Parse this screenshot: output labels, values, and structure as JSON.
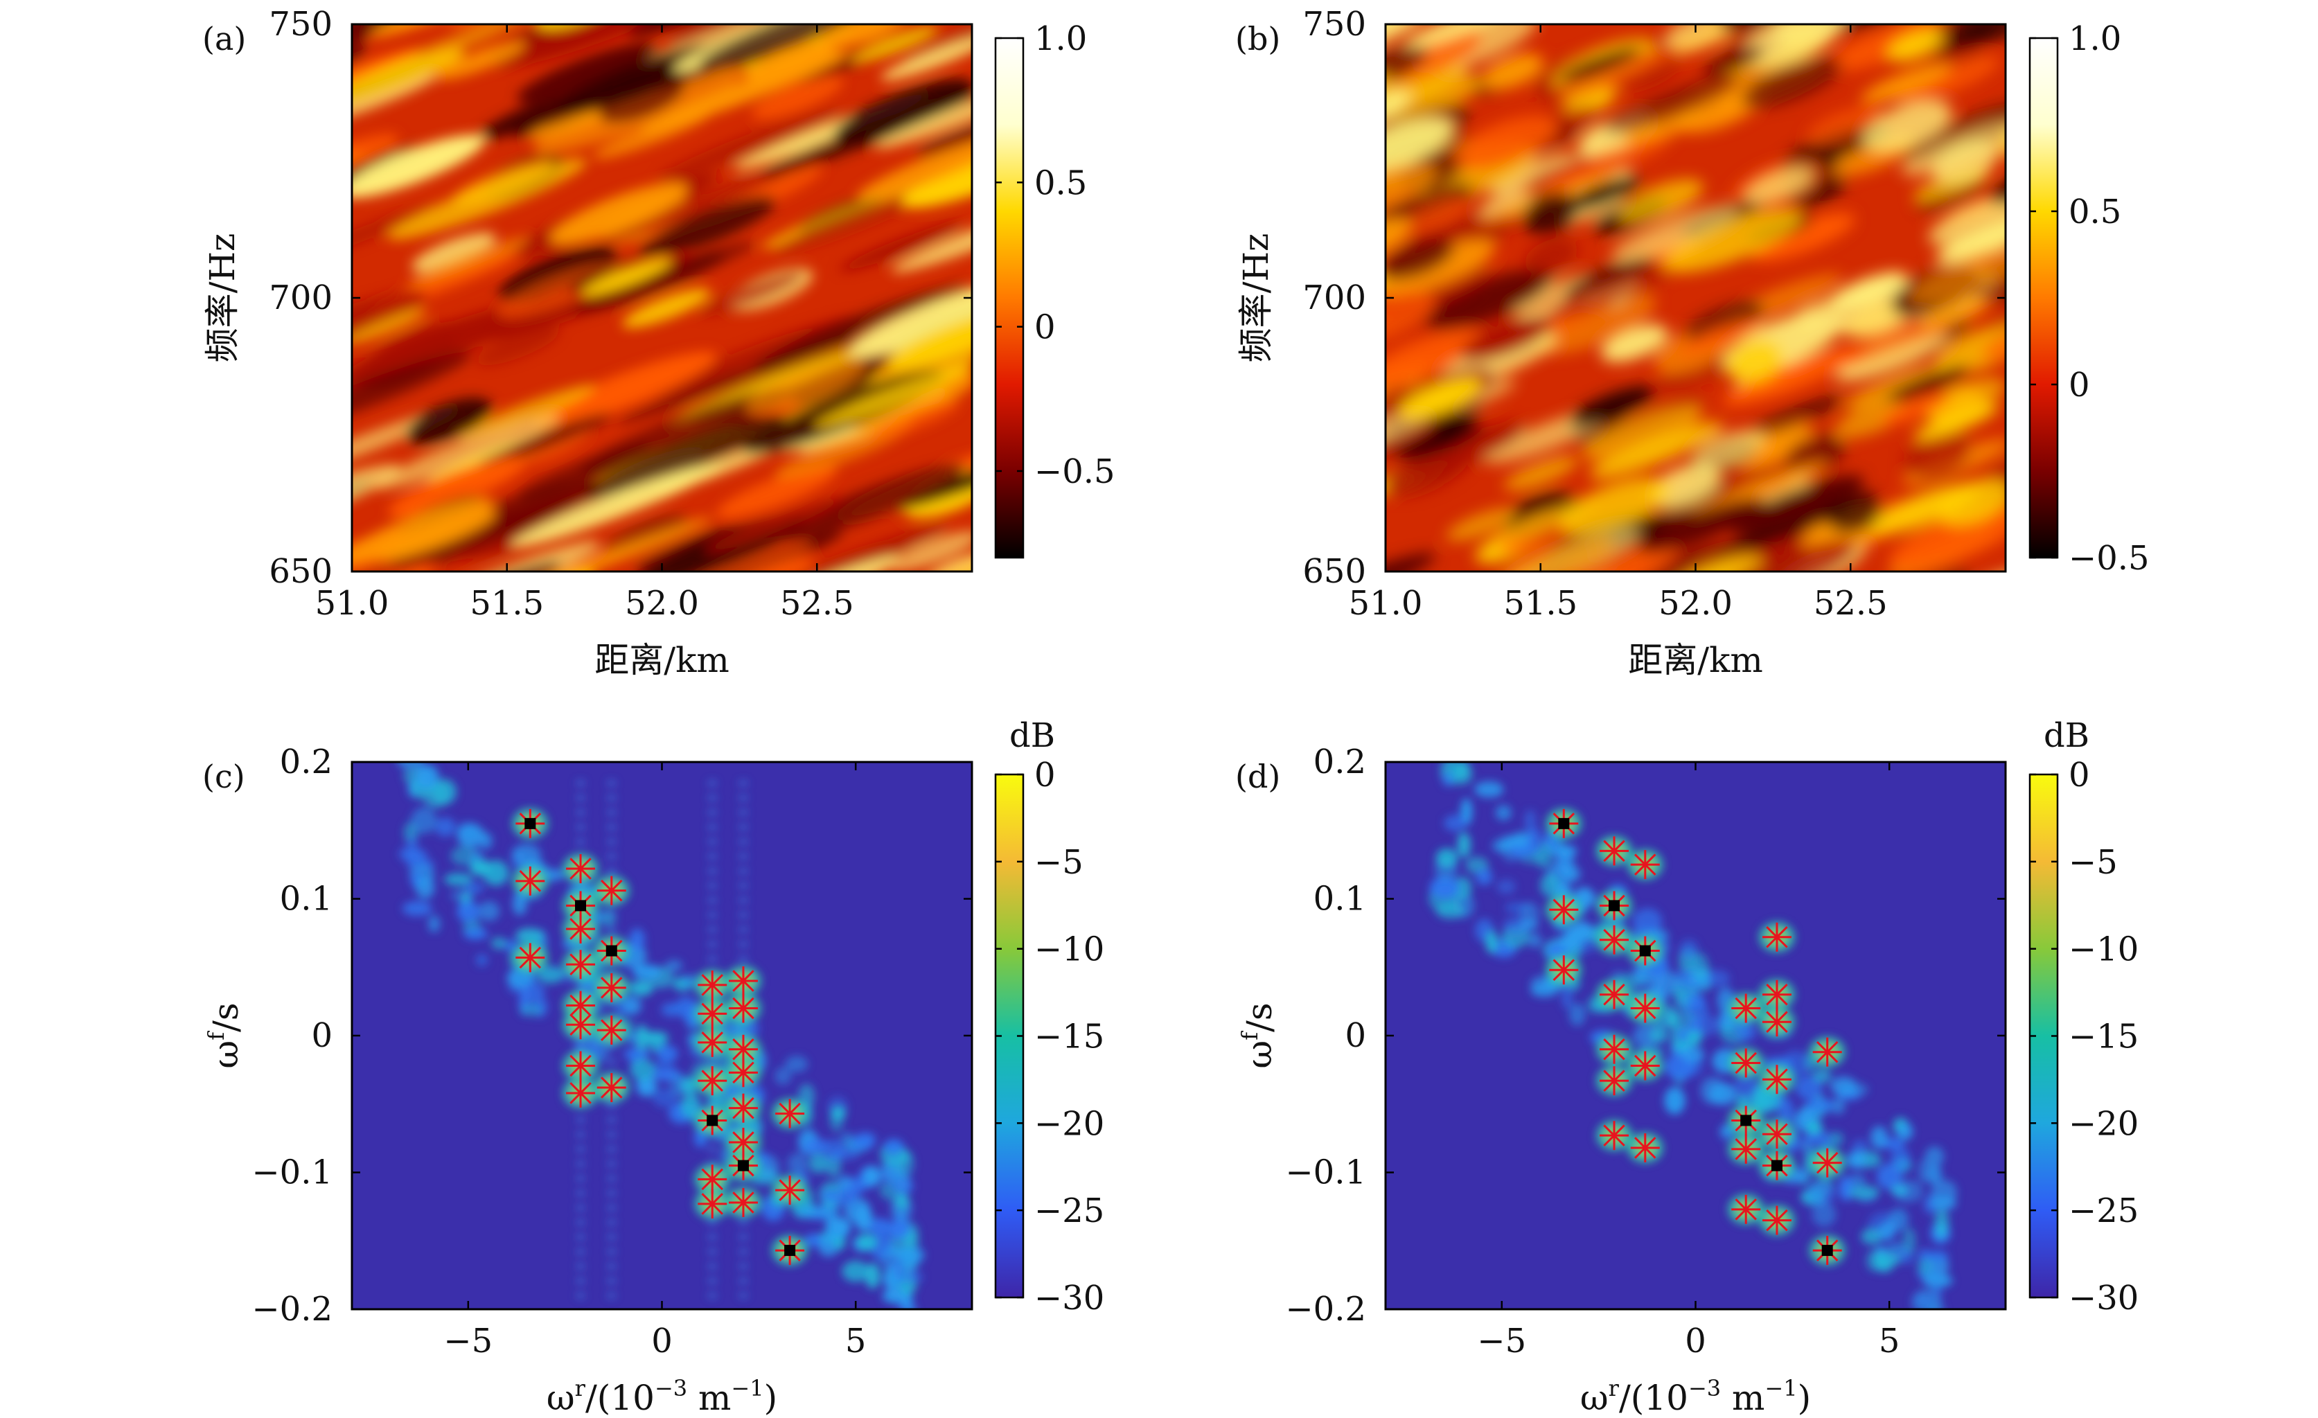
{
  "colors": {
    "heat_stops": [
      "#000000",
      "#7a0000",
      "#e11a00",
      "#ff7a00",
      "#ffd800",
      "#ffffcf",
      "#ffffff"
    ],
    "parula_stops": [
      "#3e26a8",
      "#2f5cf5",
      "#1fa7de",
      "#17bfa4",
      "#88c93a",
      "#f4ba35",
      "#f9fb0e"
    ],
    "background_c": "#3b2fab",
    "star_marker": "#e8141e",
    "square_marker": "#000000"
  },
  "chart_data": [
    {
      "panel_label": "(a)",
      "type": "heatmap",
      "xlabel": "距离/km",
      "ylabel": "频率/Hz",
      "xlim": [
        51.0,
        53.0
      ],
      "ylim": [
        650,
        750
      ],
      "xticks": [
        51.0,
        51.5,
        52.0,
        52.5
      ],
      "xtick_labels": [
        "51.0",
        "51.5",
        "52.0",
        "52.5"
      ],
      "yticks": [
        650,
        700,
        750
      ],
      "ytick_labels": [
        "650",
        "700",
        "750"
      ],
      "colormap": "hot",
      "colorbar": {
        "range": [
          -0.8,
          1.0
        ],
        "ticks": [
          1.0,
          0.5,
          0,
          -0.5
        ],
        "tick_labels": [
          "1.0",
          "0.5",
          "0",
          "−0.5"
        ],
        "title": ""
      },
      "pattern": "diagonal stripes rising to the right"
    },
    {
      "panel_label": "(b)",
      "type": "heatmap",
      "xlabel": "距离/km",
      "ylabel": "频率/Hz",
      "xlim": [
        51.0,
        53.0
      ],
      "ylim": [
        650,
        750
      ],
      "xticks": [
        51.0,
        51.5,
        52.0,
        52.5
      ],
      "xtick_labels": [
        "51.0",
        "51.5",
        "52.0",
        "52.5"
      ],
      "yticks": [
        650,
        700,
        750
      ],
      "ytick_labels": [
        "650",
        "700",
        "750"
      ],
      "colormap": "hot",
      "colorbar": {
        "range": [
          -0.5,
          1.0
        ],
        "ticks": [
          1.0,
          0.5,
          0,
          -0.5
        ],
        "tick_labels": [
          "1.0",
          "0.5",
          "0",
          "−0.5"
        ],
        "title": ""
      },
      "pattern": "patchy diagonal stripes rising to the right"
    },
    {
      "panel_label": "(c)",
      "type": "heatmap",
      "xlabel_main": "ω",
      "xlabel_sup": "r",
      "xlabel_rest": "/(10",
      "xlabel_sup2": "−3",
      "xlabel_rest2": " m",
      "xlabel_sup3": "−1",
      "xlabel_end": ")",
      "ylabel_main": "ω",
      "ylabel_sup": "f",
      "ylabel_rest": "/s",
      "xlim": [
        -8,
        8
      ],
      "ylim": [
        -0.2,
        0.2
      ],
      "xticks": [
        -5,
        0,
        5
      ],
      "xtick_labels": [
        "−5",
        "0",
        "5"
      ],
      "yticks": [
        -0.2,
        -0.1,
        0,
        0.1,
        0.2
      ],
      "ytick_labels": [
        "−0.2",
        "−0.1",
        "0",
        "0.1",
        "0.2"
      ],
      "colormap": "parula",
      "colorbar": {
        "range": [
          -30,
          0
        ],
        "ticks": [
          0,
          -5,
          -10,
          -15,
          -20,
          -25,
          -30
        ],
        "tick_labels": [
          "0",
          "−5",
          "−10",
          "−15",
          "−20",
          "−25",
          "−30"
        ],
        "title": "dB"
      },
      "star_points": [
        [
          -3.4,
          0.155
        ],
        [
          -3.4,
          0.113
        ],
        [
          -3.4,
          0.057
        ],
        [
          -2.1,
          0.122
        ],
        [
          -2.1,
          0.095
        ],
        [
          -2.1,
          0.078
        ],
        [
          -2.1,
          0.052
        ],
        [
          -2.1,
          0.022
        ],
        [
          -2.1,
          0.008
        ],
        [
          -2.1,
          -0.022
        ],
        [
          -2.1,
          -0.042
        ],
        [
          -1.3,
          0.106
        ],
        [
          -1.3,
          0.062
        ],
        [
          -1.3,
          0.035
        ],
        [
          -1.3,
          0.004
        ],
        [
          -1.3,
          -0.038
        ],
        [
          1.3,
          0.037
        ],
        [
          1.3,
          0.016
        ],
        [
          1.3,
          -0.005
        ],
        [
          1.3,
          -0.033
        ],
        [
          1.3,
          -0.062
        ],
        [
          1.3,
          -0.105
        ],
        [
          1.3,
          -0.123
        ],
        [
          2.1,
          0.04
        ],
        [
          2.1,
          0.02
        ],
        [
          2.1,
          -0.01
        ],
        [
          2.1,
          -0.027
        ],
        [
          2.1,
          -0.053
        ],
        [
          2.1,
          -0.078
        ],
        [
          2.1,
          -0.095
        ],
        [
          2.1,
          -0.122
        ],
        [
          3.3,
          -0.057
        ],
        [
          3.3,
          -0.113
        ],
        [
          3.3,
          -0.157
        ]
      ],
      "square_points": [
        [
          -3.4,
          0.155
        ],
        [
          -2.1,
          0.095
        ],
        [
          -1.3,
          0.062
        ],
        [
          1.3,
          -0.062
        ],
        [
          2.1,
          -0.095
        ],
        [
          3.3,
          -0.157
        ]
      ]
    },
    {
      "panel_label": "(d)",
      "type": "heatmap",
      "xlabel_main": "ω",
      "xlabel_sup": "r",
      "xlabel_rest": "/(10",
      "xlabel_sup2": "−3",
      "xlabel_rest2": " m",
      "xlabel_sup3": "−1",
      "xlabel_end": ")",
      "ylabel_main": "ω",
      "ylabel_sup": "f",
      "ylabel_rest": "/s",
      "xlim": [
        -8,
        8
      ],
      "ylim": [
        -0.2,
        0.2
      ],
      "xticks": [
        -5,
        0,
        5
      ],
      "xtick_labels": [
        "−5",
        "0",
        "5"
      ],
      "yticks": [
        -0.2,
        -0.1,
        0,
        0.1,
        0.2
      ],
      "ytick_labels": [
        "−0.2",
        "−0.1",
        "0",
        "0.1",
        "0.2"
      ],
      "colormap": "parula",
      "colorbar": {
        "range": [
          -30,
          0
        ],
        "ticks": [
          0,
          -5,
          -10,
          -15,
          -20,
          -25,
          -30
        ],
        "tick_labels": [
          "0",
          "−5",
          "−10",
          "−15",
          "−20",
          "−25",
          "−30"
        ],
        "title": "dB"
      },
      "star_points": [
        [
          -3.4,
          0.155
        ],
        [
          -3.4,
          0.092
        ],
        [
          -3.4,
          0.048
        ],
        [
          -2.1,
          0.135
        ],
        [
          -2.1,
          0.095
        ],
        [
          -2.1,
          0.07
        ],
        [
          -2.1,
          0.03
        ],
        [
          -2.1,
          -0.01
        ],
        [
          -2.1,
          -0.033
        ],
        [
          -2.1,
          -0.073
        ],
        [
          -1.3,
          0.125
        ],
        [
          -1.3,
          0.062
        ],
        [
          -1.3,
          0.02
        ],
        [
          -1.3,
          -0.022
        ],
        [
          -1.3,
          -0.082
        ],
        [
          1.3,
          0.02
        ],
        [
          1.3,
          -0.02
        ],
        [
          1.3,
          -0.062
        ],
        [
          1.3,
          -0.083
        ],
        [
          1.3,
          -0.127
        ],
        [
          2.1,
          0.072
        ],
        [
          2.1,
          0.03
        ],
        [
          2.1,
          0.01
        ],
        [
          2.1,
          -0.032
        ],
        [
          2.1,
          -0.072
        ],
        [
          2.1,
          -0.095
        ],
        [
          2.1,
          -0.135
        ],
        [
          3.4,
          -0.012
        ],
        [
          3.4,
          -0.093
        ],
        [
          3.4,
          -0.157
        ]
      ],
      "square_points": [
        [
          -3.4,
          0.155
        ],
        [
          -2.1,
          0.095
        ],
        [
          -1.3,
          0.062
        ],
        [
          1.3,
          -0.062
        ],
        [
          2.1,
          -0.095
        ],
        [
          3.4,
          -0.157
        ]
      ]
    }
  ]
}
